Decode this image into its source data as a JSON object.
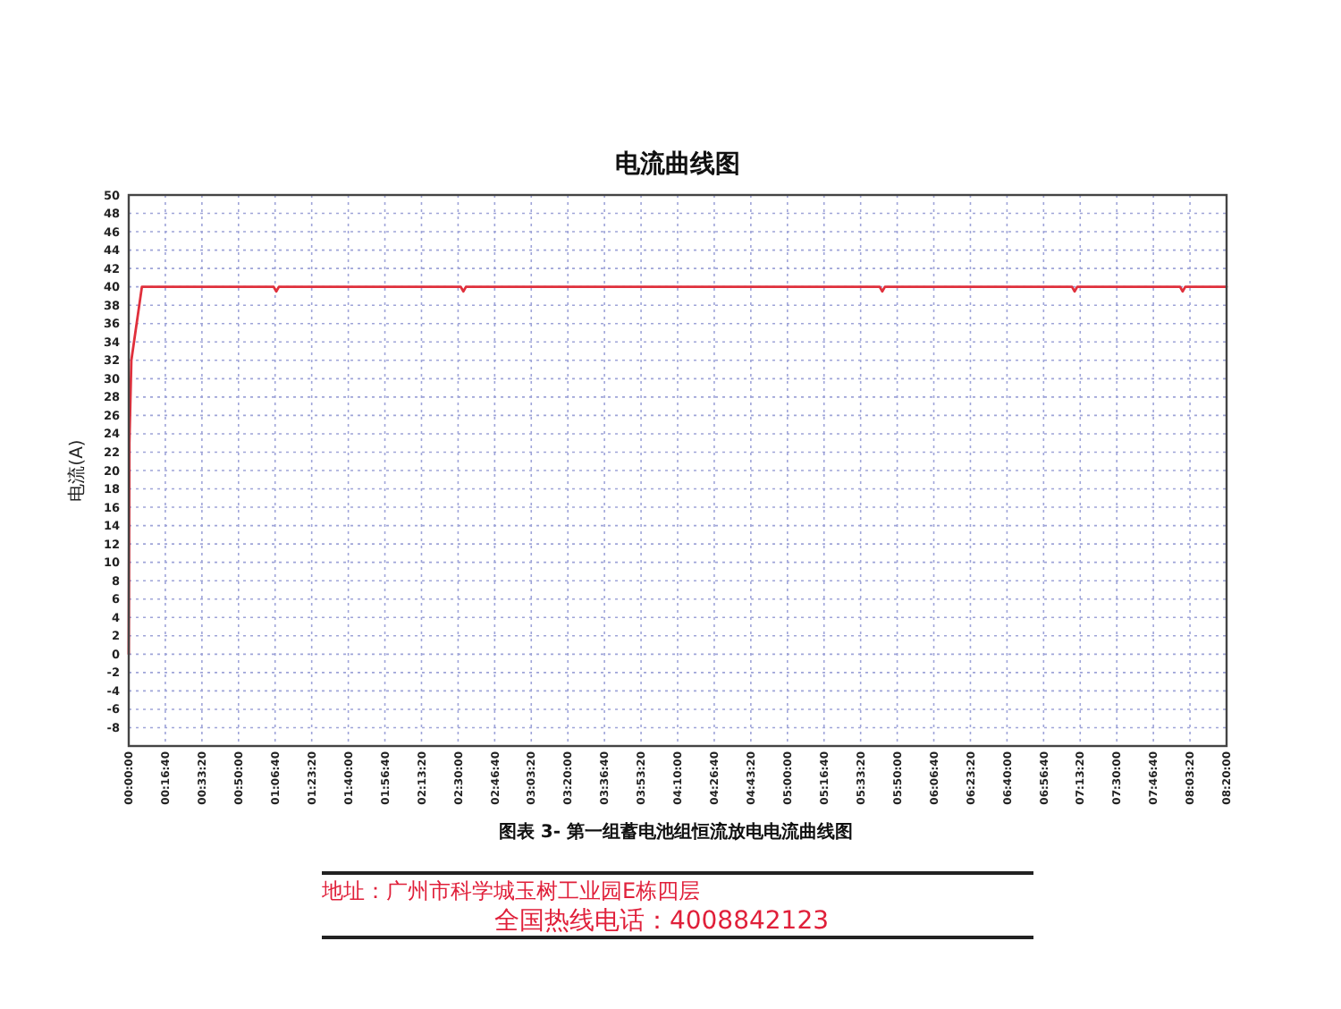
{
  "chart_data": {
    "type": "line",
    "title": "电流曲线图",
    "ylabel": "电流(A)",
    "annotations": [
      "图表 3- 第一组蓄电池组恒流放电电流曲线图",
      "地址：广州市科学城玉树工业园E栋四层",
      "全国热线电话：4008842123"
    ],
    "x": [
      0,
      0.005,
      0.02,
      0.1,
      1.1,
      1.12,
      1.14,
      2.52,
      2.54,
      2.56,
      5.7,
      5.72,
      5.74,
      7.16,
      7.18,
      7.2,
      7.98,
      8.0,
      8.02,
      8.33333
    ],
    "series": [
      {
        "color": "#e0303c",
        "values": [
          0,
          23,
          32,
          40,
          40,
          39.5,
          40,
          40,
          39.5,
          40,
          40,
          39.5,
          40,
          40,
          39.5,
          40,
          40,
          39.5,
          40,
          40
        ]
      }
    ],
    "xlim": [
      0,
      8.33333
    ],
    "xticks": [
      {
        "value": 0,
        "label": "00:00:00"
      },
      {
        "value": 0.27778,
        "label": "00:16:40"
      },
      {
        "value": 0.55556,
        "label": "00:33:20"
      },
      {
        "value": 0.83333,
        "label": "00:50:00"
      },
      {
        "value": 1.11111,
        "label": "01:06:40"
      },
      {
        "value": 1.38889,
        "label": "01:23:20"
      },
      {
        "value": 1.66667,
        "label": "01:40:00"
      },
      {
        "value": 1.94444,
        "label": "01:56:40"
      },
      {
        "value": 2.22222,
        "label": "02:13:20"
      },
      {
        "value": 2.5,
        "label": "02:30:00"
      },
      {
        "value": 2.77778,
        "label": "02:46:40"
      },
      {
        "value": 3.05556,
        "label": "03:03:20"
      },
      {
        "value": 3.33333,
        "label": "03:20:00"
      },
      {
        "value": 3.61111,
        "label": "03:36:40"
      },
      {
        "value": 3.88889,
        "label": "03:53:20"
      },
      {
        "value": 4.16667,
        "label": "04:10:00"
      },
      {
        "value": 4.44444,
        "label": "04:26:40"
      },
      {
        "value": 4.72222,
        "label": "04:43:20"
      },
      {
        "value": 5,
        "label": "05:00:00"
      },
      {
        "value": 5.27778,
        "label": "05:16:40"
      },
      {
        "value": 5.55556,
        "label": "05:33:20"
      },
      {
        "value": 5.83333,
        "label": "05:50:00"
      },
      {
        "value": 6.11111,
        "label": "06:06:40"
      },
      {
        "value": 6.38889,
        "label": "06:23:20"
      },
      {
        "value": 6.66667,
        "label": "06:40:00"
      },
      {
        "value": 6.94444,
        "label": "06:56:40"
      },
      {
        "value": 7.22222,
        "label": "07:13:20"
      },
      {
        "value": 7.5,
        "label": "07:30:00"
      },
      {
        "value": 7.77778,
        "label": "07:46:40"
      },
      {
        "value": 8.05556,
        "label": "08:03:20"
      },
      {
        "value": 8.33333,
        "label": "08:20:00"
      }
    ],
    "ylim": [
      -10,
      50
    ],
    "yticks": [
      -8,
      -6,
      -4,
      -2,
      0,
      2,
      4,
      6,
      8,
      10,
      12,
      14,
      16,
      18,
      20,
      22,
      24,
      26,
      28,
      30,
      32,
      34,
      36,
      38,
      40,
      42,
      44,
      46,
      48,
      50
    ],
    "grid": true
  }
}
